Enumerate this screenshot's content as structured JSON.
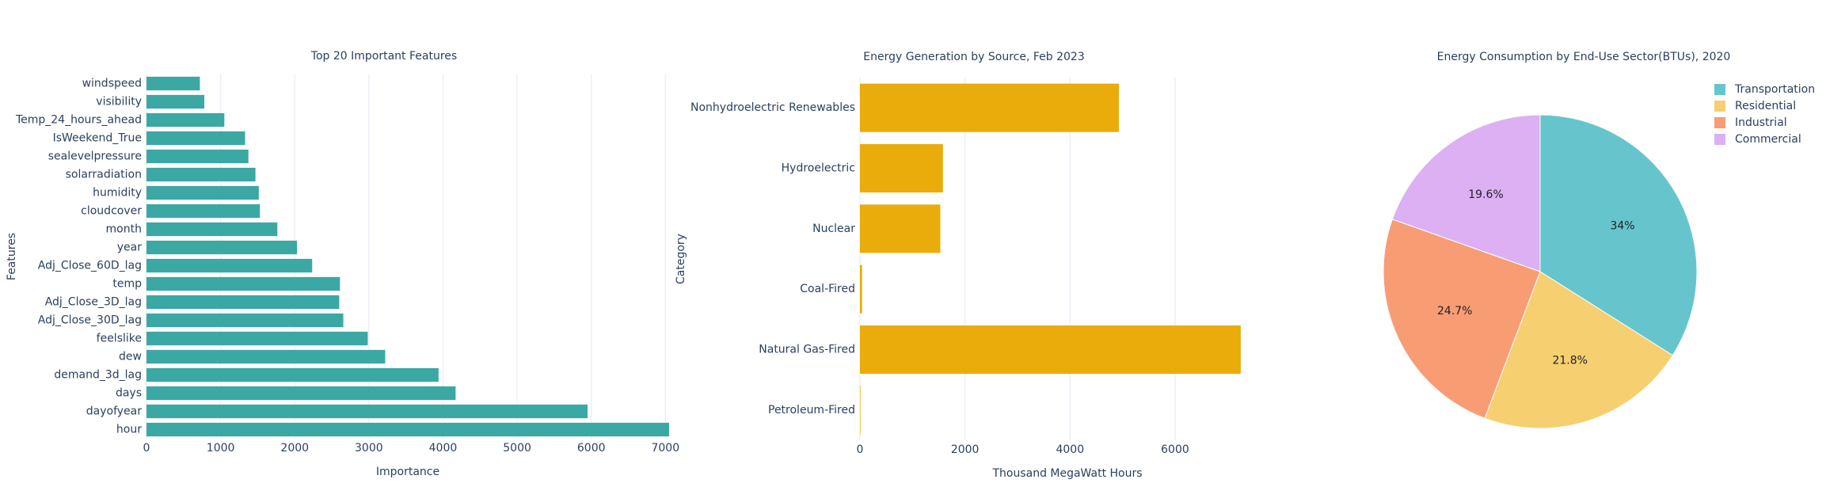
{
  "chart_data": [
    {
      "type": "hbar",
      "title": "Top 20 Important Features",
      "x_label": "Importance",
      "y_label": "Features",
      "color": "#3ba8a4",
      "categories": [
        "windspeed",
        "visibility",
        "Temp_24_hours_ahead",
        "IsWeekend_True",
        "sealevelpressure",
        "solarradiation",
        "humidity",
        "cloudcover",
        "month",
        "year",
        "Adj_Close_60D_lag",
        "temp",
        "Adj_Close_3D_lag",
        "Adj_Close_30D_lag",
        "feelslike",
        "dew",
        "demand_3d_lag",
        "days",
        "dayofyear",
        "hour"
      ],
      "values": [
        720,
        780,
        1050,
        1330,
        1375,
        1470,
        1515,
        1530,
        1765,
        2030,
        2235,
        2610,
        2600,
        2655,
        2985,
        3220,
        3940,
        4170,
        5950,
        7050
      ],
      "xlim": [
        0,
        7050
      ],
      "xticks": [
        0,
        1000,
        2000,
        3000,
        4000,
        5000,
        6000,
        7000
      ],
      "grid": true
    },
    {
      "type": "hbar",
      "title": "Energy Generation by Source, Feb 2023",
      "x_label": "Thousand MegaWatt Hours",
      "y_label": "Category",
      "color": "#eaac0a",
      "categories": [
        "Nonhydroelectric Renewables",
        "Hydroelectric",
        "Nuclear",
        "Coal-Fired",
        "Natural Gas-Fired",
        "Petroleum-Fired"
      ],
      "values": [
        4930,
        1580,
        1530,
        40,
        7250,
        10
      ],
      "xlim": [
        0,
        7900
      ],
      "xticks": [
        0,
        2000,
        4000,
        6000
      ],
      "grid": true
    },
    {
      "type": "pie",
      "title": "Energy Consumption by End-Use Sector(BTUs), 2020",
      "categories": [
        "Transportation",
        "Residential",
        "Industrial",
        "Commercial"
      ],
      "values": [
        34,
        21.8,
        24.7,
        19.6
      ],
      "value_labels": [
        "34%",
        "21.8%",
        "24.7%",
        "19.6%"
      ],
      "colors": [
        "#66c5cc",
        "#f6cf71",
        "#f89c74",
        "#dcb0f2"
      ],
      "legend": "top-right"
    }
  ]
}
